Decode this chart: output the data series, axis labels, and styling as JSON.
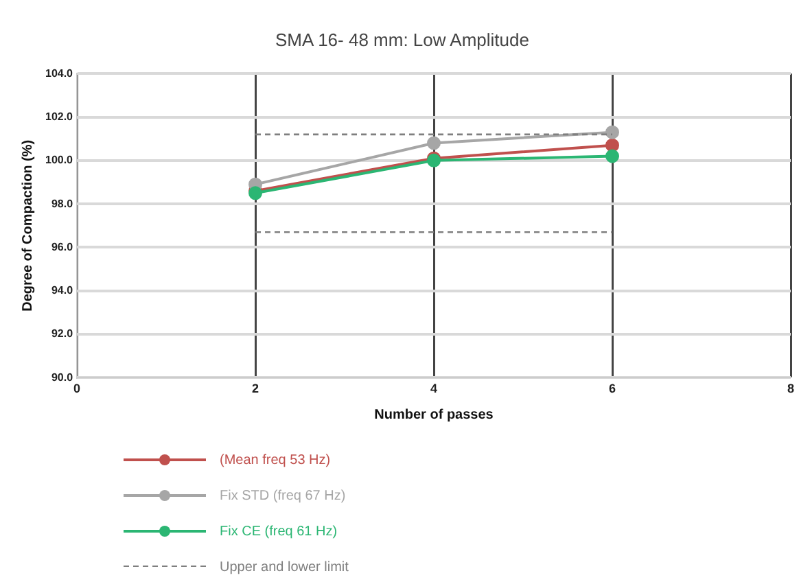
{
  "chart_data": {
    "type": "line",
    "title": "SMA 16- 48 mm: Low Amplitude",
    "xlabel": "Number of passes",
    "ylabel": "Degree of Compaction (%)",
    "xlim": [
      0,
      8
    ],
    "xticks": [
      0,
      2,
      4,
      6,
      8
    ],
    "ylim": [
      90,
      104
    ],
    "yticks": [
      {
        "value": 90,
        "label": "90.0"
      },
      {
        "value": 92,
        "label": "92.0"
      },
      {
        "value": 94,
        "label": "94.0"
      },
      {
        "value": 96,
        "label": "96.0"
      },
      {
        "value": 98,
        "label": "98.0"
      },
      {
        "value": 100,
        "label": "100.0"
      },
      {
        "value": 102,
        "label": "102.0"
      },
      {
        "value": 104,
        "label": "104.0"
      }
    ],
    "grid": true,
    "legend": "bottom",
    "marker": "circle",
    "line_style": "solid",
    "series": [
      {
        "name": "(Mean freq 53 Hz)",
        "color": "#c0504d",
        "x": [
          2,
          4,
          6
        ],
        "values": [
          98.6,
          100.1,
          100.7
        ]
      },
      {
        "name": "Fix STD (freq 67 Hz)",
        "color": "#a6a6a6",
        "x": [
          2,
          4,
          6
        ],
        "values": [
          98.9,
          100.8,
          101.3
        ]
      },
      {
        "name": "Fix CE (freq 61 Hz)",
        "color": "#2bb673",
        "x": [
          2,
          4,
          6
        ],
        "values": [
          98.5,
          100.0,
          100.2
        ]
      },
      {
        "name": "Upper and lower limit",
        "color": "#7f7f7f",
        "x": [
          2,
          4,
          6
        ],
        "values": [
          101.2,
          101.2,
          101.2
        ],
        "marker": "none",
        "line_style": "dashed"
      },
      {
        "color": "#7f7f7f",
        "x": [
          2,
          4,
          6
        ],
        "values": [
          96.7,
          96.7,
          96.7
        ],
        "marker": "none",
        "line_style": "dashed"
      }
    ]
  }
}
